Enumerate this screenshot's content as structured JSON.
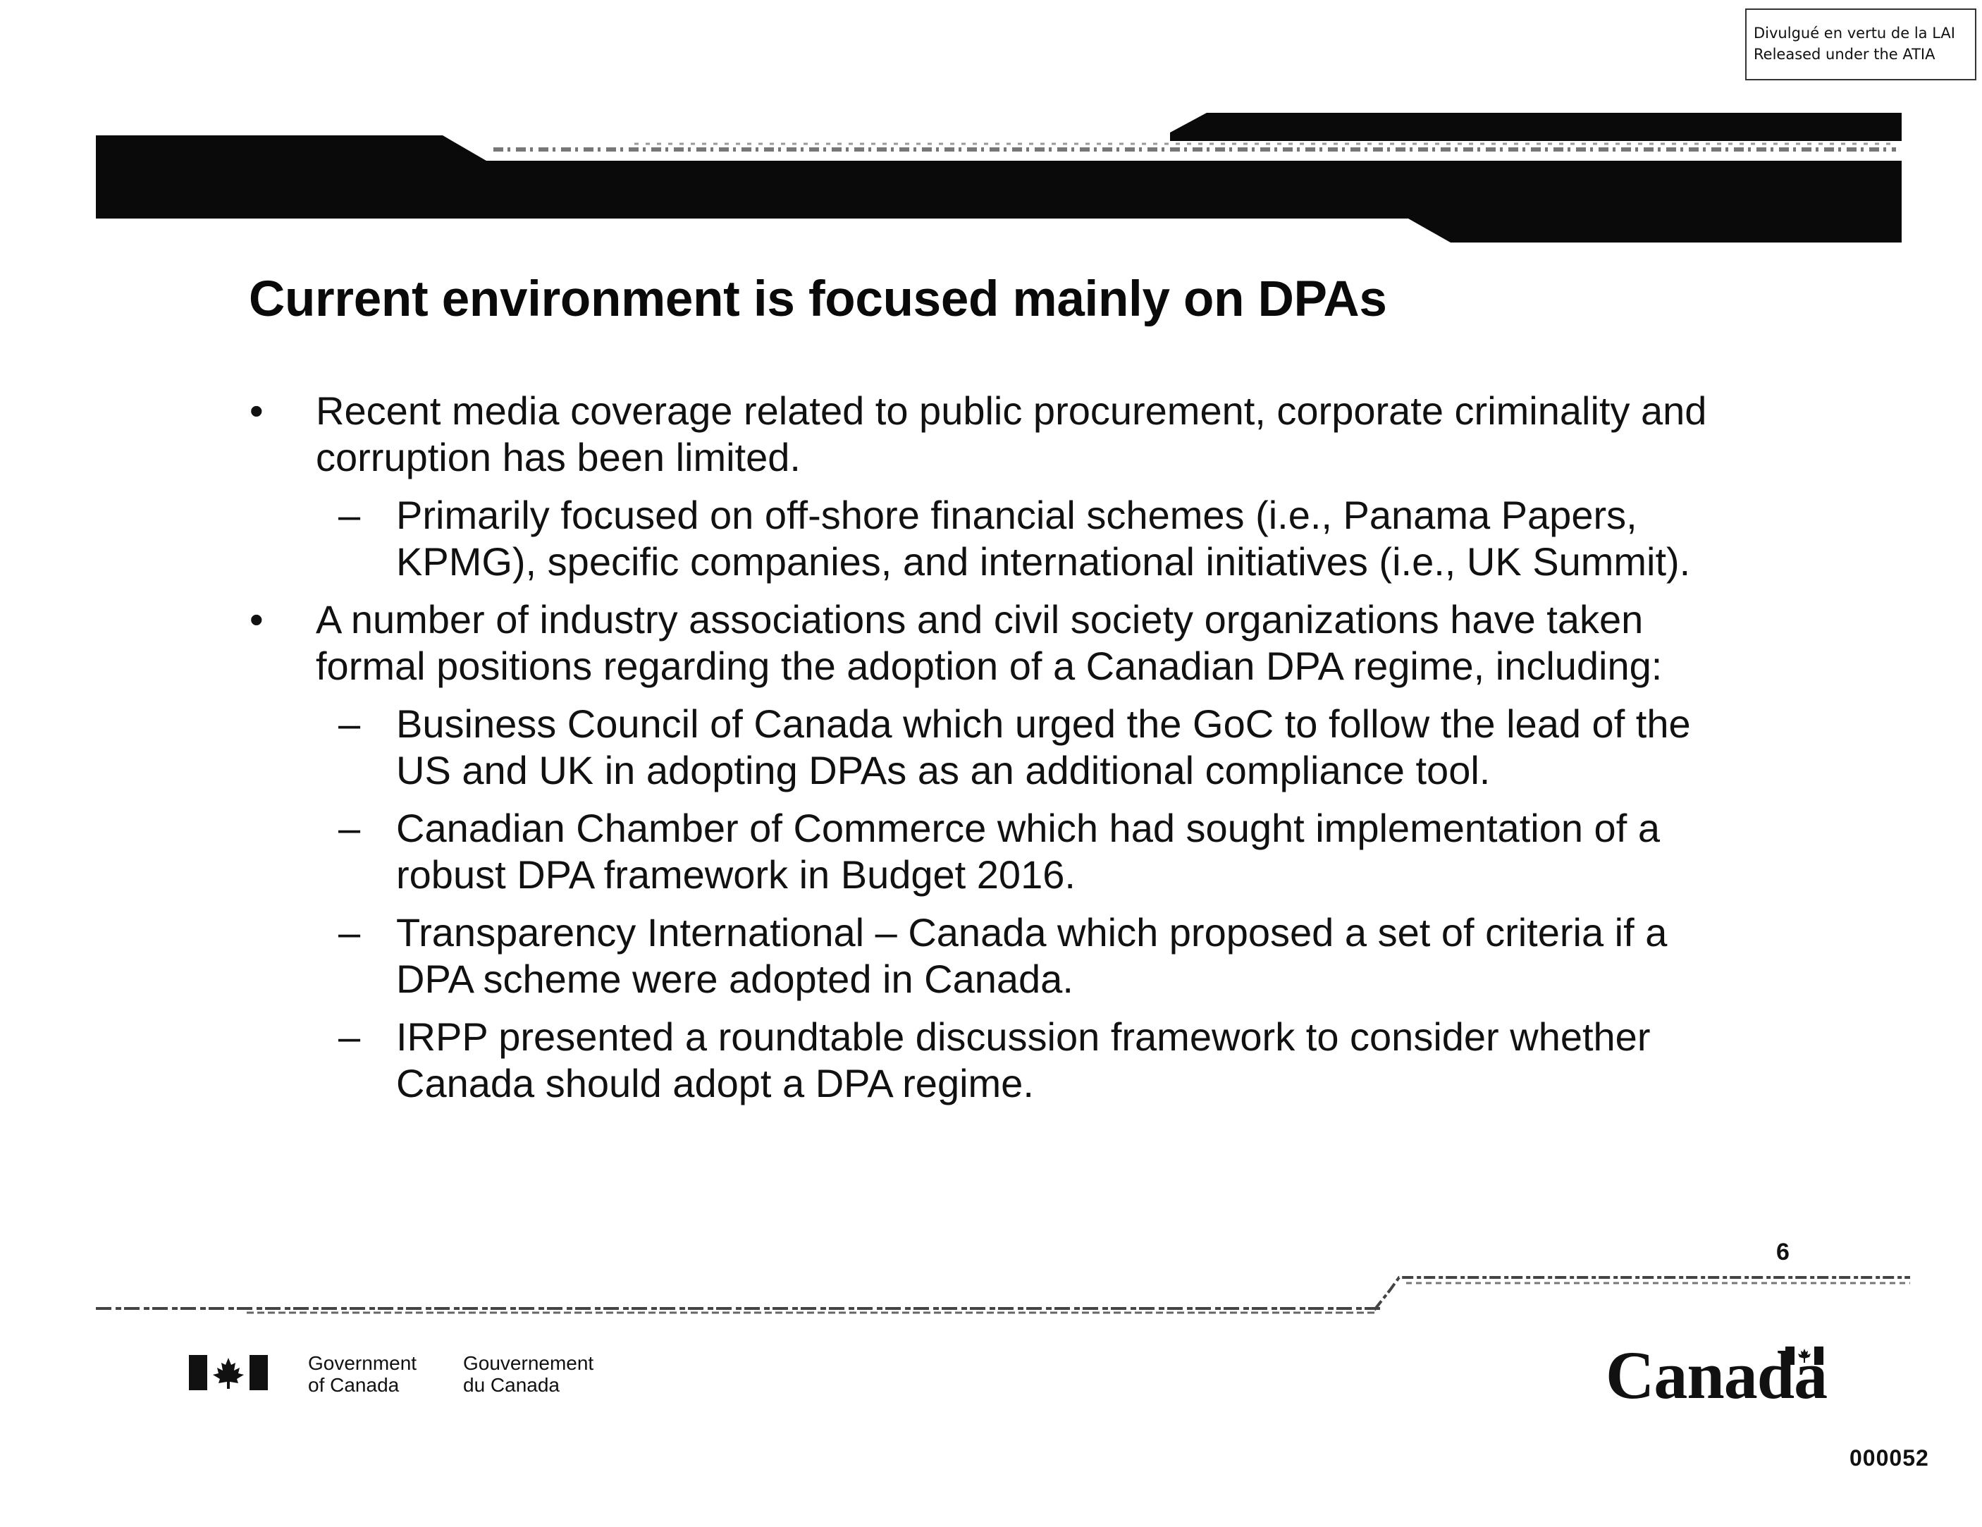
{
  "stamp": {
    "line1": "Divulgué en vertu de la LAI",
    "line2": "Released under the ATIA"
  },
  "slide": {
    "title": "Current environment is focused mainly on DPAs",
    "bullets": [
      {
        "level": 1,
        "lines": [
          "Recent media coverage related to public procurement, corporate criminality and",
          "corruption has been limited."
        ]
      },
      {
        "level": 2,
        "lines": [
          "Primarily focused on off-shore financial schemes (i.e., Panama Papers,",
          "KPMG), specific companies, and international initiatives (i.e., UK Summit)."
        ]
      },
      {
        "level": 1,
        "lines": [
          "A number of industry associations and civil society organizations have taken",
          "formal positions regarding the adoption of a Canadian DPA regime, including:"
        ]
      },
      {
        "level": 2,
        "lines": [
          "Business Council of Canada which urged the GoC to follow the lead of the",
          "US and UK in adopting DPAs as an additional compliance tool."
        ]
      },
      {
        "level": 2,
        "lines": [
          "Canadian Chamber of Commerce which had sought implementation of a",
          "robust DPA framework in Budget 2016."
        ]
      },
      {
        "level": 2,
        "lines": [
          "Transparency International – Canada which proposed a set of criteria if a",
          "DPA scheme were adopted in Canada."
        ]
      },
      {
        "level": 2,
        "lines": [
          "IRPP presented a roundtable discussion framework to consider whether",
          "Canada should adopt a DPA regime."
        ]
      }
    ],
    "markers": {
      "level1": "•",
      "level2": "–"
    },
    "page_number": "6"
  },
  "footer": {
    "gov_en_line1": "Government",
    "gov_en_line2": "of Canada",
    "gov_fr_line1": "Gouvernement",
    "gov_fr_line2": "du Canada",
    "wordmark": "Canada",
    "document_number": "000052"
  },
  "colors": {
    "band": "#0a0a0a",
    "text": "#111111",
    "background": "#ffffff"
  }
}
